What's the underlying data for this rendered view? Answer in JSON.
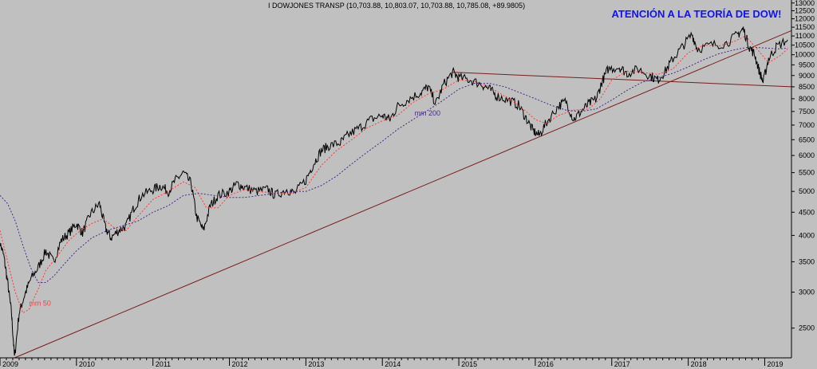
{
  "chart_data": {
    "type": "line",
    "header": "I DOWJONES TRANSP (10,703.88, 10,803.07, 10,703.88, 10,785.08, +89.9805)",
    "headline": "ATENCIÓN A LA TEORÍA DE DOW!",
    "y_scale": "log",
    "ylim": [
      2150,
      13200
    ],
    "xlim": [
      2009.0,
      2019.35
    ],
    "y_ticks": [
      2500,
      3000,
      3500,
      4000,
      4500,
      5000,
      5500,
      6000,
      6500,
      7000,
      7500,
      8000,
      8500,
      9000,
      9500,
      10000,
      10500,
      11000,
      11500,
      12000,
      12500,
      13000
    ],
    "x_ticks": [
      {
        "label": "2009",
        "x": 2009.0
      },
      {
        "label": "2010",
        "x": 2010.0
      },
      {
        "label": "2011",
        "x": 2011.0
      },
      {
        "label": "2012",
        "x": 2012.0
      },
      {
        "label": "2013",
        "x": 2013.0
      },
      {
        "label": "2014",
        "x": 2014.0
      },
      {
        "label": "2015",
        "x": 2015.0
      },
      {
        "label": "2016",
        "x": 2016.0
      },
      {
        "label": "2017",
        "x": 2017.0
      },
      {
        "label": "2018",
        "x": 2018.0
      },
      {
        "label": "2019",
        "x": 2019.0
      }
    ],
    "series": [
      {
        "name": "",
        "color": "#000000",
        "points": [
          [
            2008.98,
            3950
          ],
          [
            2009.05,
            3600
          ],
          [
            2009.1,
            3150
          ],
          [
            2009.15,
            2700
          ],
          [
            2009.19,
            2150
          ],
          [
            2009.25,
            2700
          ],
          [
            2009.32,
            2950
          ],
          [
            2009.4,
            3200
          ],
          [
            2009.5,
            3400
          ],
          [
            2009.6,
            3700
          ],
          [
            2009.7,
            3500
          ],
          [
            2009.8,
            3900
          ],
          [
            2009.9,
            4050
          ],
          [
            2010.0,
            4250
          ],
          [
            2010.08,
            4050
          ],
          [
            2010.18,
            4450
          ],
          [
            2010.3,
            4700
          ],
          [
            2010.38,
            4150
          ],
          [
            2010.45,
            3950
          ],
          [
            2010.55,
            4100
          ],
          [
            2010.65,
            4200
          ],
          [
            2010.75,
            4600
          ],
          [
            2010.85,
            4900
          ],
          [
            2011.0,
            5050
          ],
          [
            2011.1,
            5150
          ],
          [
            2011.2,
            5000
          ],
          [
            2011.3,
            5300
          ],
          [
            2011.4,
            5500
          ],
          [
            2011.5,
            5200
          ],
          [
            2011.57,
            4400
          ],
          [
            2011.66,
            4100
          ],
          [
            2011.75,
            4650
          ],
          [
            2011.85,
            4900
          ],
          [
            2012.0,
            5000
          ],
          [
            2012.1,
            5200
          ],
          [
            2012.2,
            5100
          ],
          [
            2012.35,
            5000
          ],
          [
            2012.5,
            5050
          ],
          [
            2012.6,
            4900
          ],
          [
            2012.75,
            5050
          ],
          [
            2012.85,
            4950
          ],
          [
            2013.0,
            5300
          ],
          [
            2013.1,
            5750
          ],
          [
            2013.2,
            6150
          ],
          [
            2013.3,
            6300
          ],
          [
            2013.45,
            6400
          ],
          [
            2013.55,
            6650
          ],
          [
            2013.7,
            6900
          ],
          [
            2013.85,
            7200
          ],
          [
            2014.0,
            7350
          ],
          [
            2014.1,
            7200
          ],
          [
            2014.2,
            7700
          ],
          [
            2014.35,
            8000
          ],
          [
            2014.5,
            8250
          ],
          [
            2014.6,
            8500
          ],
          [
            2014.7,
            7800
          ],
          [
            2014.8,
            8600
          ],
          [
            2014.92,
            9150
          ],
          [
            2015.0,
            8900
          ],
          [
            2015.15,
            8800
          ],
          [
            2015.3,
            8600
          ],
          [
            2015.4,
            8400
          ],
          [
            2015.5,
            8100
          ],
          [
            2015.65,
            7950
          ],
          [
            2015.78,
            7750
          ],
          [
            2015.88,
            7250
          ],
          [
            2015.97,
            6800
          ],
          [
            2016.05,
            6650
          ],
          [
            2016.15,
            7100
          ],
          [
            2016.3,
            7700
          ],
          [
            2016.4,
            7900
          ],
          [
            2016.5,
            7200
          ],
          [
            2016.6,
            7500
          ],
          [
            2016.7,
            7800
          ],
          [
            2016.8,
            8000
          ],
          [
            2016.87,
            8700
          ],
          [
            2016.95,
            9300
          ],
          [
            2017.1,
            9400
          ],
          [
            2017.2,
            9100
          ],
          [
            2017.35,
            9300
          ],
          [
            2017.5,
            9000
          ],
          [
            2017.6,
            8800
          ],
          [
            2017.7,
            9200
          ],
          [
            2017.8,
            9800
          ],
          [
            2017.92,
            10400
          ],
          [
            2018.05,
            11100
          ],
          [
            2018.12,
            10300
          ],
          [
            2018.3,
            10500
          ],
          [
            2018.5,
            10600
          ],
          [
            2018.65,
            11100
          ],
          [
            2018.72,
            11400
          ],
          [
            2018.8,
            10400
          ],
          [
            2018.87,
            10000
          ],
          [
            2018.93,
            9200
          ],
          [
            2018.98,
            8700
          ],
          [
            2019.05,
            9800
          ],
          [
            2019.15,
            10400
          ],
          [
            2019.3,
            10790
          ]
        ]
      },
      {
        "name": "mm 50",
        "color": "#ff3b3b",
        "points": [
          [
            2009.0,
            4100
          ],
          [
            2009.1,
            3500
          ],
          [
            2009.2,
            3000
          ],
          [
            2009.3,
            2700
          ],
          [
            2009.38,
            2750
          ],
          [
            2009.5,
            3050
          ],
          [
            2009.6,
            3350
          ],
          [
            2009.75,
            3600
          ],
          [
            2009.9,
            3900
          ],
          [
            2010.05,
            4100
          ],
          [
            2010.2,
            4250
          ],
          [
            2010.35,
            4350
          ],
          [
            2010.5,
            4150
          ],
          [
            2010.65,
            4100
          ],
          [
            2010.8,
            4400
          ],
          [
            2011.0,
            4800
          ],
          [
            2011.2,
            5000
          ],
          [
            2011.4,
            5250
          ],
          [
            2011.55,
            5100
          ],
          [
            2011.7,
            4600
          ],
          [
            2011.85,
            4600
          ],
          [
            2012.0,
            4900
          ],
          [
            2012.2,
            5050
          ],
          [
            2012.4,
            5000
          ],
          [
            2012.6,
            4950
          ],
          [
            2012.8,
            4950
          ],
          [
            2013.0,
            5100
          ],
          [
            2013.2,
            5700
          ],
          [
            2013.4,
            6150
          ],
          [
            2013.6,
            6500
          ],
          [
            2013.8,
            6900
          ],
          [
            2014.0,
            7150
          ],
          [
            2014.2,
            7350
          ],
          [
            2014.4,
            7850
          ],
          [
            2014.6,
            8200
          ],
          [
            2014.8,
            8400
          ],
          [
            2015.0,
            8800
          ],
          [
            2015.2,
            8750
          ],
          [
            2015.4,
            8500
          ],
          [
            2015.6,
            8100
          ],
          [
            2015.8,
            7700
          ],
          [
            2016.0,
            7200
          ],
          [
            2016.15,
            7050
          ],
          [
            2016.3,
            7350
          ],
          [
            2016.5,
            7550
          ],
          [
            2016.7,
            7600
          ],
          [
            2016.85,
            8000
          ],
          [
            2017.0,
            8800
          ],
          [
            2017.2,
            9200
          ],
          [
            2017.4,
            9150
          ],
          [
            2017.6,
            9050
          ],
          [
            2017.8,
            9300
          ],
          [
            2018.0,
            10100
          ],
          [
            2018.2,
            10500
          ],
          [
            2018.4,
            10450
          ],
          [
            2018.6,
            10700
          ],
          [
            2018.75,
            11000
          ],
          [
            2018.9,
            10300
          ],
          [
            2019.05,
            9600
          ],
          [
            2019.2,
            9950
          ],
          [
            2019.3,
            10300
          ]
        ]
      },
      {
        "name": "mm 200",
        "color": "#4b2a8a",
        "points": [
          [
            2009.0,
            4900
          ],
          [
            2009.1,
            4700
          ],
          [
            2009.2,
            4300
          ],
          [
            2009.3,
            3800
          ],
          [
            2009.4,
            3400
          ],
          [
            2009.5,
            3150
          ],
          [
            2009.6,
            3150
          ],
          [
            2009.7,
            3250
          ],
          [
            2009.8,
            3400
          ],
          [
            2009.9,
            3550
          ],
          [
            2010.0,
            3700
          ],
          [
            2010.2,
            3950
          ],
          [
            2010.4,
            4100
          ],
          [
            2010.6,
            4200
          ],
          [
            2010.8,
            4300
          ],
          [
            2011.0,
            4500
          ],
          [
            2011.2,
            4650
          ],
          [
            2011.4,
            4900
          ],
          [
            2011.6,
            4950
          ],
          [
            2011.8,
            4900
          ],
          [
            2012.0,
            4850
          ],
          [
            2012.2,
            4850
          ],
          [
            2012.4,
            4900
          ],
          [
            2012.6,
            4950
          ],
          [
            2012.8,
            5000
          ],
          [
            2013.0,
            5000
          ],
          [
            2013.2,
            5150
          ],
          [
            2013.4,
            5400
          ],
          [
            2013.6,
            5750
          ],
          [
            2013.8,
            6100
          ],
          [
            2014.0,
            6450
          ],
          [
            2014.2,
            6850
          ],
          [
            2014.4,
            7200
          ],
          [
            2014.6,
            7550
          ],
          [
            2014.8,
            7950
          ],
          [
            2015.0,
            8400
          ],
          [
            2015.2,
            8650
          ],
          [
            2015.4,
            8650
          ],
          [
            2015.6,
            8500
          ],
          [
            2015.8,
            8250
          ],
          [
            2016.0,
            8000
          ],
          [
            2016.2,
            7750
          ],
          [
            2016.4,
            7550
          ],
          [
            2016.6,
            7500
          ],
          [
            2016.8,
            7600
          ],
          [
            2017.0,
            7950
          ],
          [
            2017.2,
            8350
          ],
          [
            2017.4,
            8700
          ],
          [
            2017.6,
            8900
          ],
          [
            2017.8,
            9100
          ],
          [
            2018.0,
            9400
          ],
          [
            2018.2,
            9750
          ],
          [
            2018.4,
            10050
          ],
          [
            2018.6,
            10250
          ],
          [
            2018.8,
            10400
          ],
          [
            2019.0,
            10350
          ],
          [
            2019.2,
            10300
          ],
          [
            2019.3,
            10350
          ]
        ]
      }
    ],
    "trendlines": [
      {
        "from": [
          2009.19,
          2150
        ],
        "to": [
          2019.35,
          11300
        ],
        "color": "#7a1c1c"
      },
      {
        "from": [
          2014.92,
          9150
        ],
        "to": [
          2019.35,
          8500
        ],
        "color": "#7a1c1c"
      }
    ],
    "annotations": [
      {
        "text": "mm 50",
        "x": 2009.38,
        "y": 2800,
        "color": "#ff3b3b"
      },
      {
        "text": "mm 200",
        "x": 2014.42,
        "y": 7350,
        "color": "#4b2a8a"
      }
    ]
  }
}
